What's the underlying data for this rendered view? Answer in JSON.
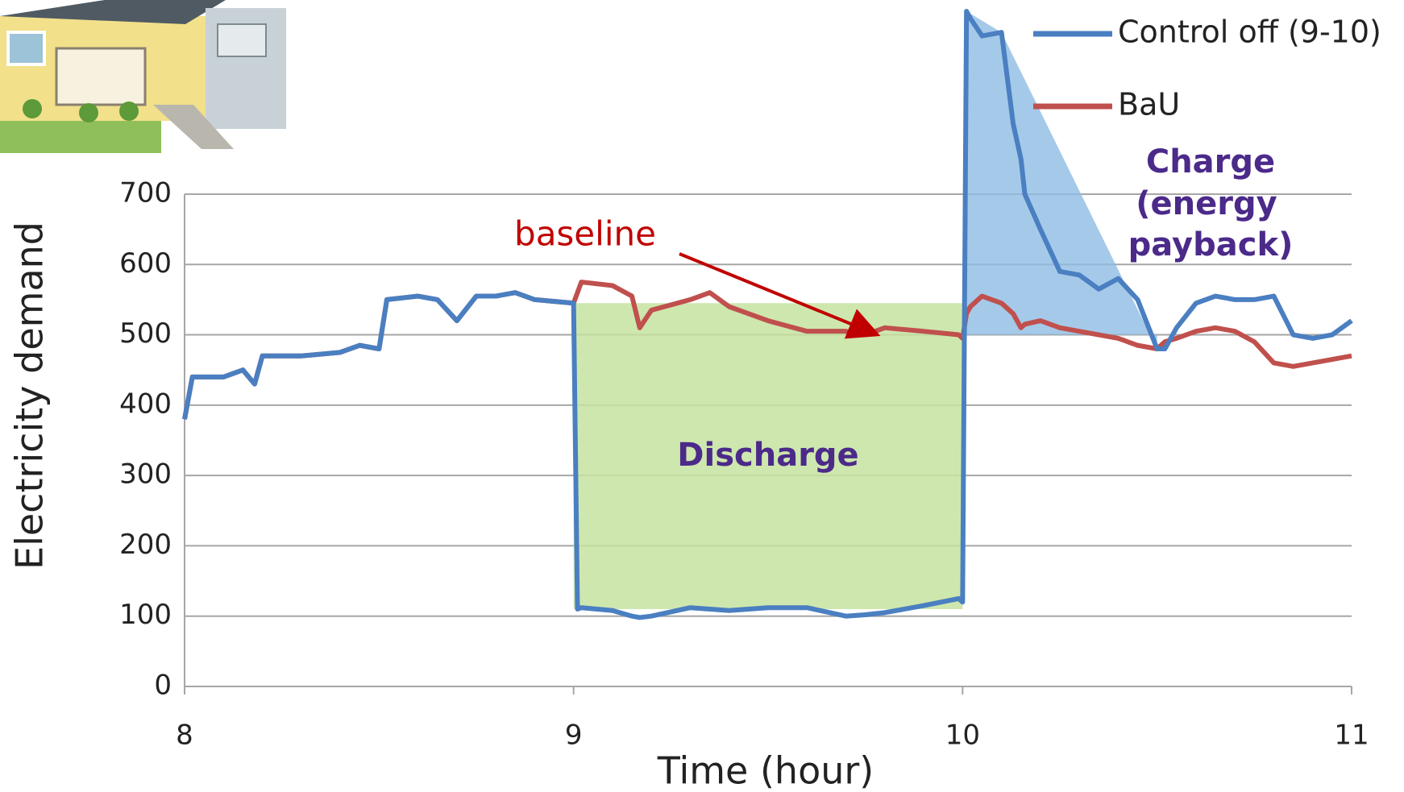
{
  "chart_data": {
    "type": "line",
    "x_label": "Time (hour)",
    "y_label": "Electricity demand",
    "annotations": [
      "baseline",
      "Discharge",
      "Charge",
      "(energy",
      "payback)"
    ],
    "x": [
      8,
      8.02,
      8.1,
      8.15,
      8.18,
      8.2,
      8.3,
      8.4,
      8.45,
      8.5,
      8.52,
      8.6,
      8.65,
      8.7,
      8.75,
      8.8,
      8.85,
      8.9,
      9.0,
      9.01,
      9.02,
      9.1,
      9.15,
      9.17,
      9.2,
      9.3,
      9.35,
      9.4,
      9.5,
      9.6,
      9.7,
      9.75,
      9.8,
      9.9,
      9.99,
      10.0,
      10.01,
      10.02,
      10.05,
      10.1,
      10.13,
      10.15,
      10.16,
      10.2,
      10.25,
      10.3,
      10.35,
      10.4,
      10.45,
      10.5,
      10.52,
      10.55,
      10.6,
      10.65,
      10.7,
      10.75,
      10.8,
      10.85,
      10.9,
      10.95,
      11.0
    ],
    "series": [
      {
        "name": "Control off (9-10)",
        "color": "#4a7fc1",
        "values": [
          380,
          440,
          440,
          450,
          430,
          470,
          470,
          475,
          485,
          480,
          550,
          555,
          550,
          520,
          555,
          555,
          560,
          550,
          545,
          110,
          112,
          108,
          100,
          98,
          100,
          112,
          110,
          108,
          112,
          112,
          100,
          102,
          105,
          115,
          125,
          120,
          960,
          950,
          925,
          930,
          800,
          750,
          700,
          650,
          590,
          585,
          565,
          580,
          550,
          480,
          480,
          510,
          545,
          555,
          550,
          550,
          555,
          500,
          495,
          500,
          520
        ]
      },
      {
        "name": "BaU",
        "color": "#c0504d",
        "values": [
          380,
          440,
          440,
          450,
          430,
          470,
          470,
          475,
          485,
          480,
          550,
          555,
          550,
          520,
          555,
          555,
          560,
          550,
          545,
          560,
          575,
          570,
          555,
          510,
          535,
          550,
          560,
          540,
          520,
          505,
          505,
          500,
          510,
          505,
          500,
          495,
          530,
          540,
          555,
          545,
          530,
          510,
          515,
          520,
          510,
          505,
          500,
          495,
          485,
          480,
          490,
          495,
          505,
          510,
          505,
          490,
          460,
          455,
          460,
          465,
          470
        ]
      }
    ],
    "xlim": [
      8,
      11
    ],
    "xticks": [
      8,
      9,
      10,
      11
    ],
    "ylim": [
      0,
      960
    ],
    "yticks": [
      0,
      100,
      200,
      300,
      400,
      500,
      600,
      700
    ],
    "grid": true,
    "legend": "top-right"
  }
}
